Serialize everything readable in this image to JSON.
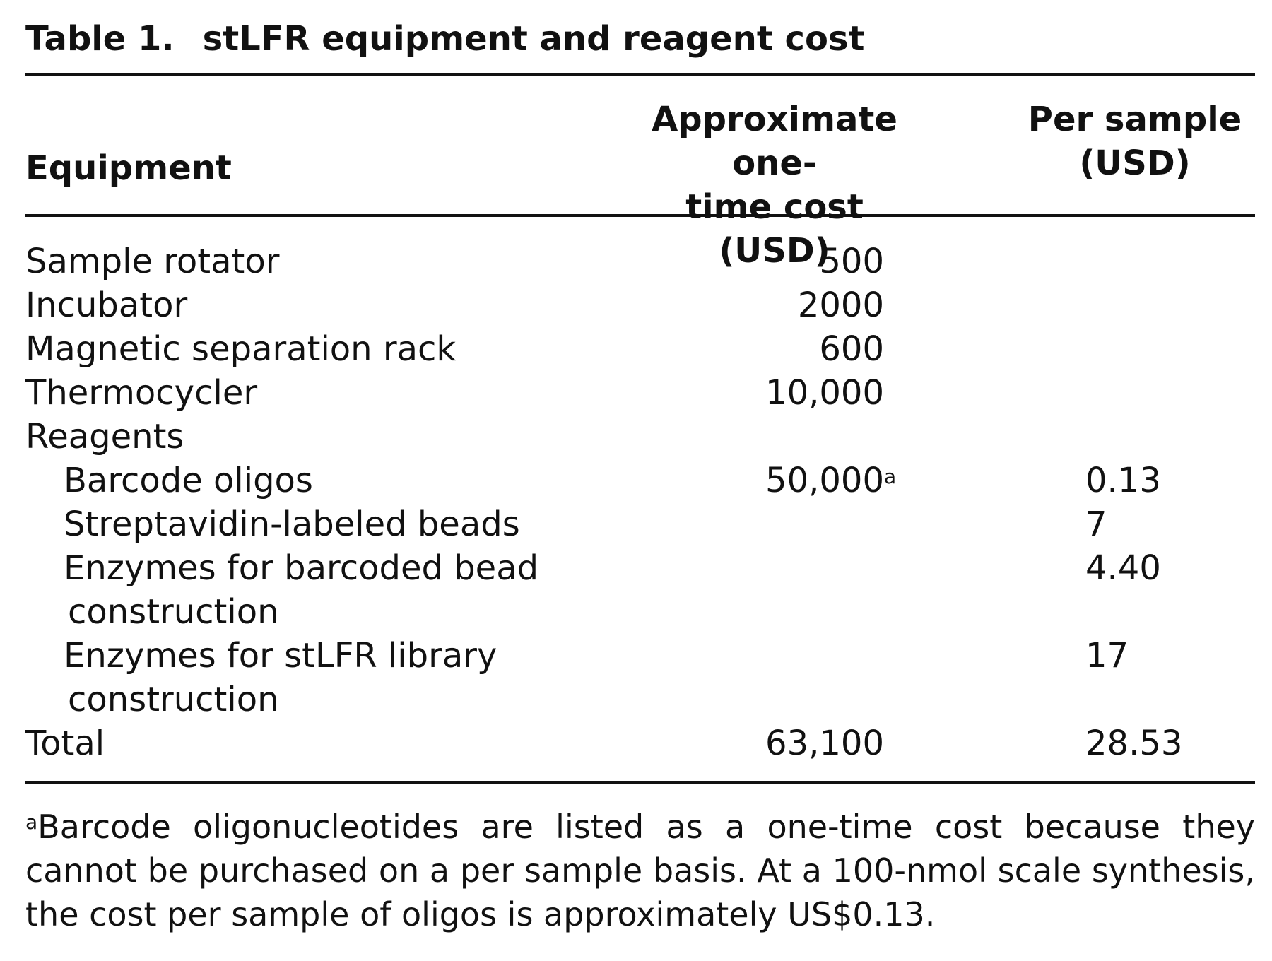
{
  "table": {
    "label": "Table 1.",
    "title": "stLFR equipment and reagent cost",
    "headers": {
      "equipment": "Equipment",
      "onetime_line1": "Approximate one-",
      "onetime_line2": "time cost (USD)",
      "persample_line1": "Per sample",
      "persample_line2": "(USD)"
    },
    "rows": [
      {
        "label": "Sample rotator",
        "onetime": "500",
        "per_sample": ""
      },
      {
        "label": "Incubator",
        "onetime": "2000",
        "per_sample": ""
      },
      {
        "label": "Magnetic separation rack",
        "onetime": "600",
        "per_sample": ""
      },
      {
        "label": "Thermocycler",
        "onetime": "10,000",
        "per_sample": ""
      },
      {
        "label": "Reagents",
        "onetime": "",
        "per_sample": ""
      },
      {
        "label": "Barcode oligos",
        "onetime": "50,000",
        "onetime_note": "a",
        "per_sample": "0.13"
      },
      {
        "label": "Streptavidin-labeled beads",
        "onetime": "",
        "per_sample": "7"
      },
      {
        "label": "Enzymes for barcoded bead",
        "label_line2": "construction",
        "onetime": "",
        "per_sample": "4.40"
      },
      {
        "label": "Enzymes for stLFR library",
        "label_line2": "construction",
        "onetime": "",
        "per_sample": "17"
      },
      {
        "label": "Total",
        "onetime": "63,100",
        "per_sample": "28.53"
      }
    ],
    "footnote_marker": "a",
    "footnote": "Barcode oligonucleotides are listed as a one-time cost because they cannot be purchased on a per sample basis. At a 100-nmol scale synthesis, the cost per sample of oligos is approximately US$0.13."
  }
}
